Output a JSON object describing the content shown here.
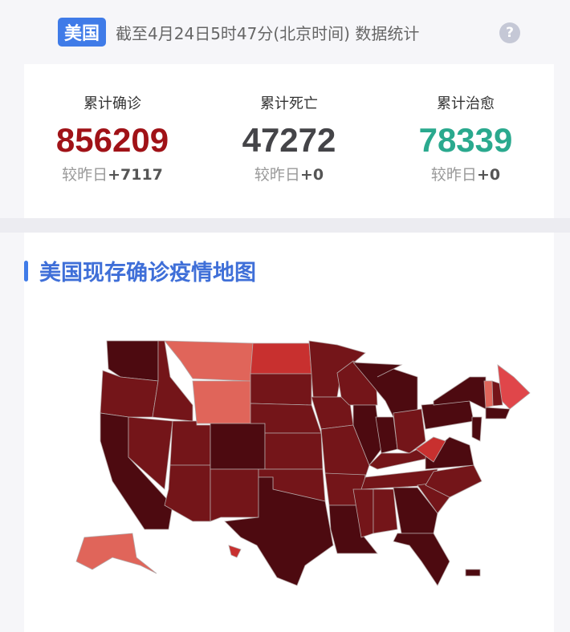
{
  "header": {
    "country_badge": "美国",
    "update_text": "截至4月24日5时47分(北京时间) 数据统计",
    "help_icon": "?"
  },
  "stats": [
    {
      "label": "累计确诊",
      "value": "856209",
      "delta_label": "较昨日",
      "delta": "+7117",
      "color": "#a01217"
    },
    {
      "label": "累计死亡",
      "value": "47272",
      "delta_label": "较昨日",
      "delta": "+0",
      "color": "#444448"
    },
    {
      "label": "累计治愈",
      "value": "78339",
      "delta_label": "较昨日",
      "delta": "+0",
      "color": "#2aa98e"
    }
  ],
  "map": {
    "title": "美国现存确诊疫情地图",
    "palette": {
      "darkest": "#4d0a10",
      "dark": "#741519",
      "red": "#c8302f",
      "light": "#e0655a",
      "rose": "#e0464a"
    },
    "state_levels": {
      "WA": "darkest",
      "OR": "dark",
      "CA": "darkest",
      "NV": "dark",
      "ID": "dark",
      "MT": "light",
      "WY": "light",
      "UT": "dark",
      "AZ": "dark",
      "CO": "darkest",
      "NM": "dark",
      "ND": "red",
      "SD": "dark",
      "NE": "dark",
      "KS": "dark",
      "OK": "dark",
      "TX": "darkest",
      "MN": "dark",
      "IA": "dark",
      "MO": "dark",
      "AR": "dark",
      "LA": "darkest",
      "WI": "dark",
      "IL": "darkest",
      "MI": "darkest",
      "IN": "darkest",
      "OH": "dark",
      "KY": "dark",
      "TN": "dark",
      "MS": "dark",
      "AL": "dark",
      "GA": "darkest",
      "FL": "darkest",
      "SC": "dark",
      "NC": "dark",
      "VA": "darkest",
      "WV": "red",
      "PA": "darkest",
      "NY": "darkest",
      "ME": "rose",
      "VT": "light",
      "NH": "dark",
      "MA": "darkest",
      "NJ": "darkest",
      "AK": "light",
      "HI": "red",
      "PR": "darkest"
    }
  }
}
